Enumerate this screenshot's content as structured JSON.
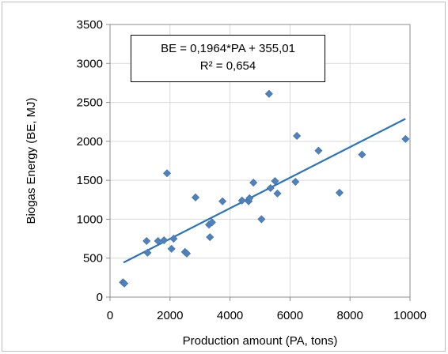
{
  "chart_data": {
    "type": "scatter",
    "xlabel": "Production amount (PA, tons)",
    "ylabel": "Biogas Energy (BE, MJ)",
    "xlim": [
      0,
      10000
    ],
    "ylim": [
      0,
      3500
    ],
    "xticks": [
      0,
      2000,
      4000,
      6000,
      8000,
      10000
    ],
    "yticks": [
      0,
      500,
      1000,
      1500,
      2000,
      2500,
      3000,
      3500
    ],
    "grid": "both",
    "colors": {
      "points": "#4f81bd",
      "trendline": "#2e75b6",
      "grid": "#d9d9d9"
    },
    "trendline": {
      "slope": 0.1964,
      "intercept": 355.01,
      "x_range": [
        450,
        9850
      ]
    },
    "annotation": {
      "equation": "BE = 0,1964*PA + 355,01",
      "r_squared": "R² = 0,654"
    },
    "points": [
      {
        "x": 430,
        "y": 190
      },
      {
        "x": 480,
        "y": 175
      },
      {
        "x": 1220,
        "y": 720
      },
      {
        "x": 1250,
        "y": 570
      },
      {
        "x": 1600,
        "y": 720
      },
      {
        "x": 1800,
        "y": 730
      },
      {
        "x": 1900,
        "y": 1590
      },
      {
        "x": 2050,
        "y": 620
      },
      {
        "x": 2120,
        "y": 750
      },
      {
        "x": 2500,
        "y": 580
      },
      {
        "x": 2560,
        "y": 560
      },
      {
        "x": 2850,
        "y": 1280
      },
      {
        "x": 3300,
        "y": 930
      },
      {
        "x": 3330,
        "y": 770
      },
      {
        "x": 3400,
        "y": 960
      },
      {
        "x": 3750,
        "y": 1230
      },
      {
        "x": 4400,
        "y": 1240
      },
      {
        "x": 4620,
        "y": 1230
      },
      {
        "x": 4650,
        "y": 1270
      },
      {
        "x": 4780,
        "y": 1470
      },
      {
        "x": 5050,
        "y": 1000
      },
      {
        "x": 5300,
        "y": 2610
      },
      {
        "x": 5350,
        "y": 1400
      },
      {
        "x": 5500,
        "y": 1490
      },
      {
        "x": 5580,
        "y": 1330
      },
      {
        "x": 6180,
        "y": 1480
      },
      {
        "x": 6230,
        "y": 2070
      },
      {
        "x": 6950,
        "y": 1880
      },
      {
        "x": 7650,
        "y": 1340
      },
      {
        "x": 8400,
        "y": 1830
      },
      {
        "x": 9850,
        "y": 2030
      }
    ]
  }
}
